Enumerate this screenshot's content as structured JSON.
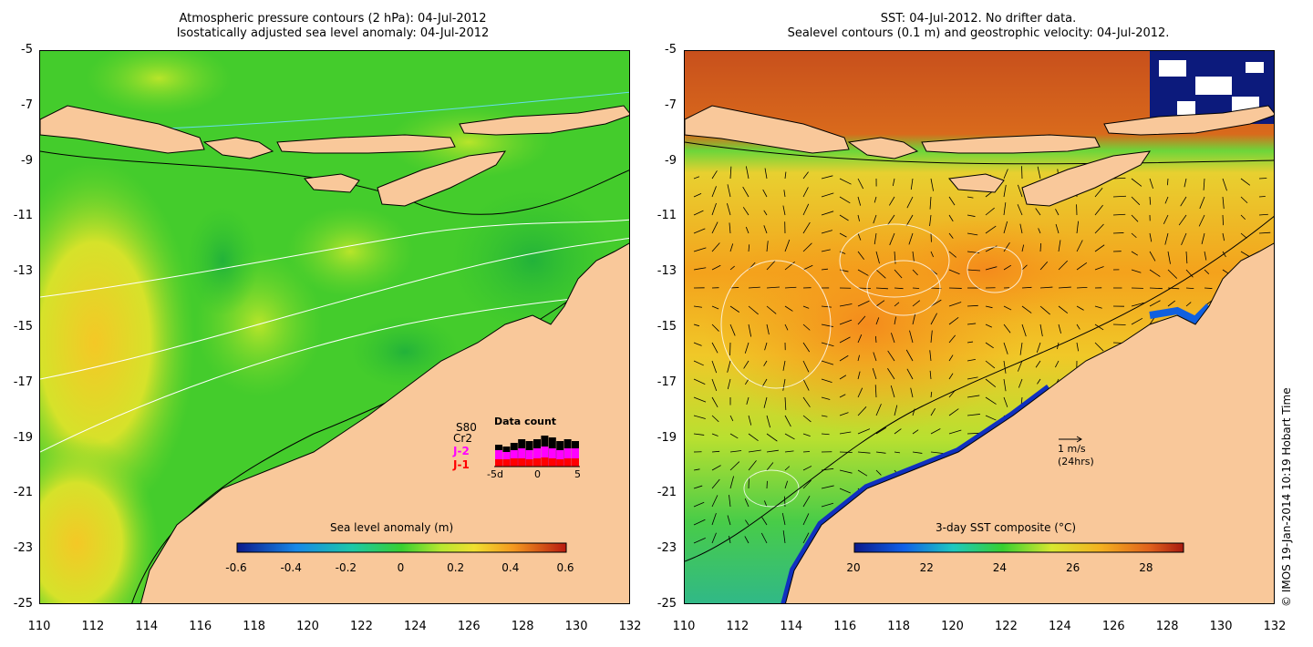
{
  "left_panel": {
    "title_line1": "Atmospheric pressure contours (2 hPa): 04-Jul-2012",
    "title_line2": "Isostatically adjusted sea level anomaly: 04-Jul-2012",
    "colorbar": {
      "label": "Sea level anomaly (m)",
      "ticks": [
        "-0.6",
        "-0.4",
        "-0.2",
        "0",
        "0.2",
        "0.4",
        "0.6"
      ],
      "range": [
        -0.6,
        0.6
      ]
    },
    "data_count": {
      "title": "Data count",
      "satellites": [
        "S80",
        "Cr2",
        "J-2",
        "J-1"
      ],
      "x_ticks": [
        "-5d",
        "0",
        "5"
      ],
      "colors": {
        "S80": "#000000",
        "Cr2": "#000000",
        "J-2": "#ff00ff",
        "J-1": "#ff0000"
      }
    }
  },
  "right_panel": {
    "title_line1": "SST: 04-Jul-2012. No drifter data.",
    "title_line2": "Sealevel contours (0.1 m) and geostrophic velocity: 04-Jul-2012.",
    "colorbar": {
      "label": "3-day SST composite (°C)",
      "ticks": [
        "20",
        "22",
        "24",
        "26",
        "28"
      ],
      "range": [
        20,
        29
      ]
    },
    "velocity_scale": {
      "speed": "1 m/s",
      "period": "(24hrs)"
    }
  },
  "axes": {
    "lat_ticks": [
      "-5",
      "-7",
      "-9",
      "-11",
      "-13",
      "-15",
      "-17",
      "-19",
      "-21",
      "-23",
      "-25"
    ],
    "lon_ticks": [
      "110",
      "112",
      "114",
      "116",
      "118",
      "120",
      "122",
      "124",
      "126",
      "128",
      "130",
      "132"
    ],
    "lat_range": [
      -25,
      -5
    ],
    "lon_range": [
      110,
      132
    ]
  },
  "credit": "© IMOS 19-Jan-2014 10:19 Hobart Time",
  "colors": {
    "land": "#f9c89a",
    "sla_green": "#3dcc2d",
    "sla_yellow": "#c8e82a",
    "sst_orange": "#f4a21c",
    "sst_red": "#c8501c",
    "sst_blue": "#1030c0"
  }
}
